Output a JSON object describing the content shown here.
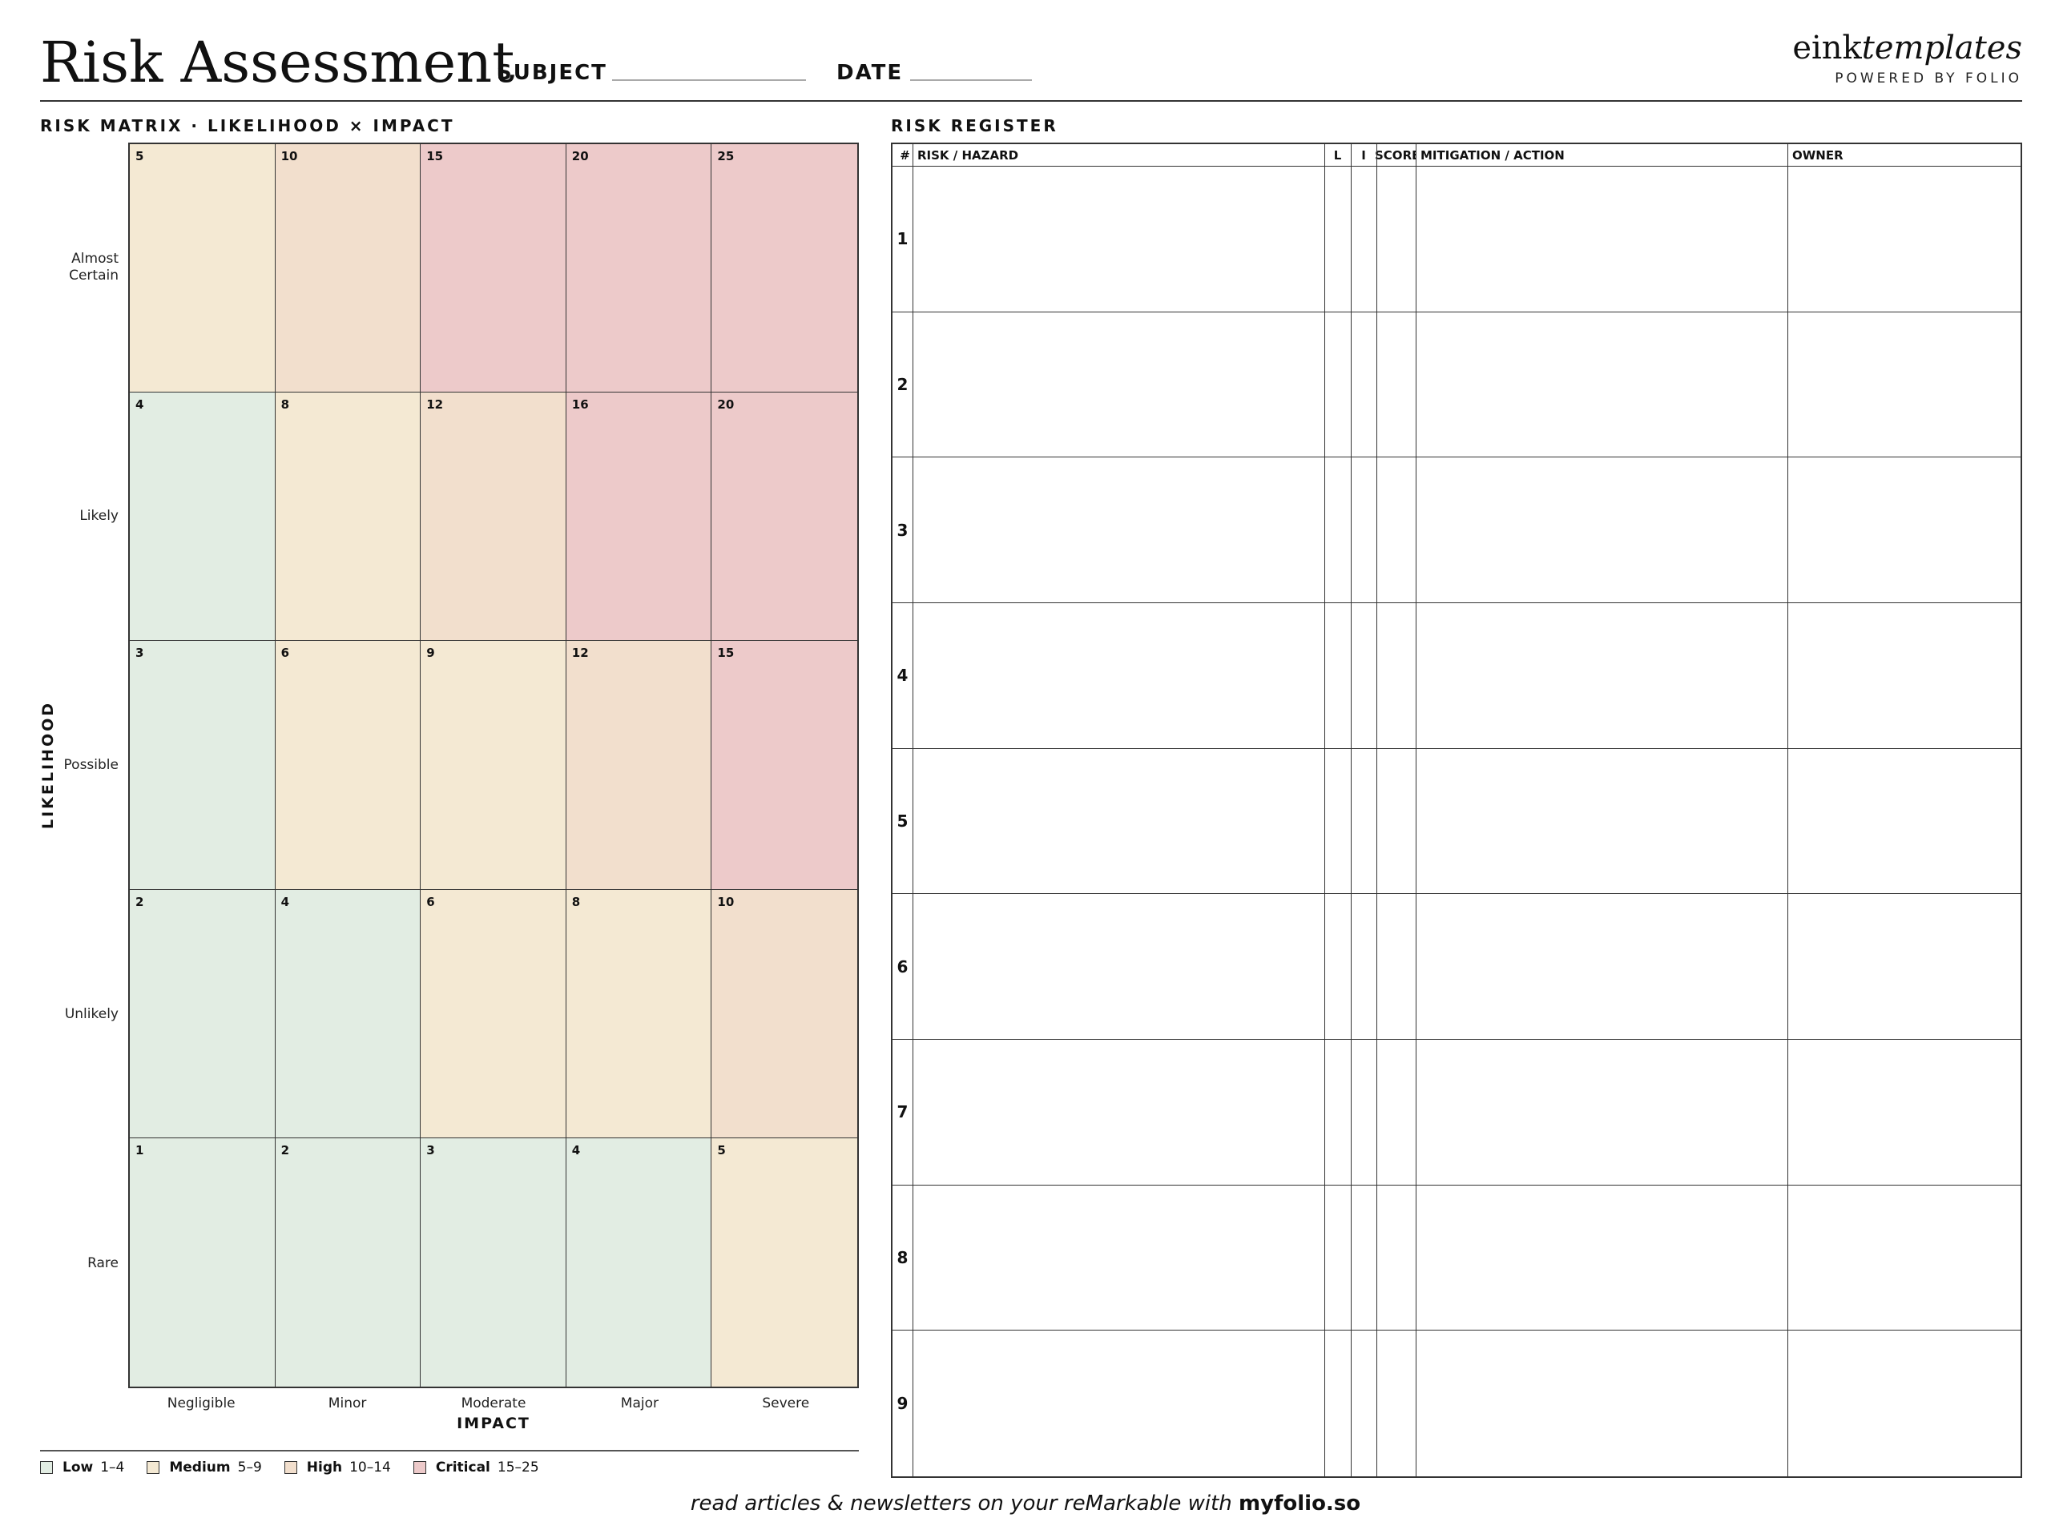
{
  "header": {
    "title": "Risk Assessment",
    "subject_label": "SUBJECT",
    "date_label": "DATE",
    "brand_main": "eink",
    "brand_italic": "templates",
    "brand_sub": "POWERED BY FOLIO"
  },
  "matrix": {
    "section_label": "RISK MATRIX · LIKELIHOOD × IMPACT",
    "y_axis_label": "LIKELIHOOD",
    "x_axis_label": "IMPACT",
    "likelihood_levels": [
      "Almost Certain",
      "Likely",
      "Possible",
      "Unlikely",
      "Rare"
    ],
    "impact_levels": [
      "Negligible",
      "Minor",
      "Moderate",
      "Major",
      "Severe"
    ],
    "scores": [
      [
        5,
        10,
        15,
        20,
        25
      ],
      [
        4,
        8,
        12,
        16,
        20
      ],
      [
        3,
        6,
        9,
        12,
        15
      ],
      [
        2,
        4,
        6,
        8,
        10
      ],
      [
        1,
        2,
        3,
        4,
        5
      ]
    ],
    "bands": [
      {
        "name": "Low",
        "range": "1–4",
        "min": 1,
        "max": 4,
        "color": "#e2ede3"
      },
      {
        "name": "Medium",
        "range": "5–9",
        "min": 5,
        "max": 9,
        "color": "#f4e9d3"
      },
      {
        "name": "High",
        "range": "10–14",
        "min": 10,
        "max": 14,
        "color": "#f2dfcd"
      },
      {
        "name": "Critical",
        "range": "15–25",
        "min": 15,
        "max": 25,
        "color": "#edcaca"
      }
    ]
  },
  "register": {
    "section_label": "RISK REGISTER",
    "columns": [
      "#",
      "RISK / HAZARD",
      "L",
      "I",
      "SCORE",
      "MITIGATION / ACTION",
      "OWNER"
    ],
    "rows": [
      "1",
      "2",
      "3",
      "4",
      "5",
      "6",
      "7",
      "8",
      "9"
    ]
  },
  "footer": {
    "text": "read articles & newsletters on your reMarkable with ",
    "link": "myfolio.so"
  }
}
